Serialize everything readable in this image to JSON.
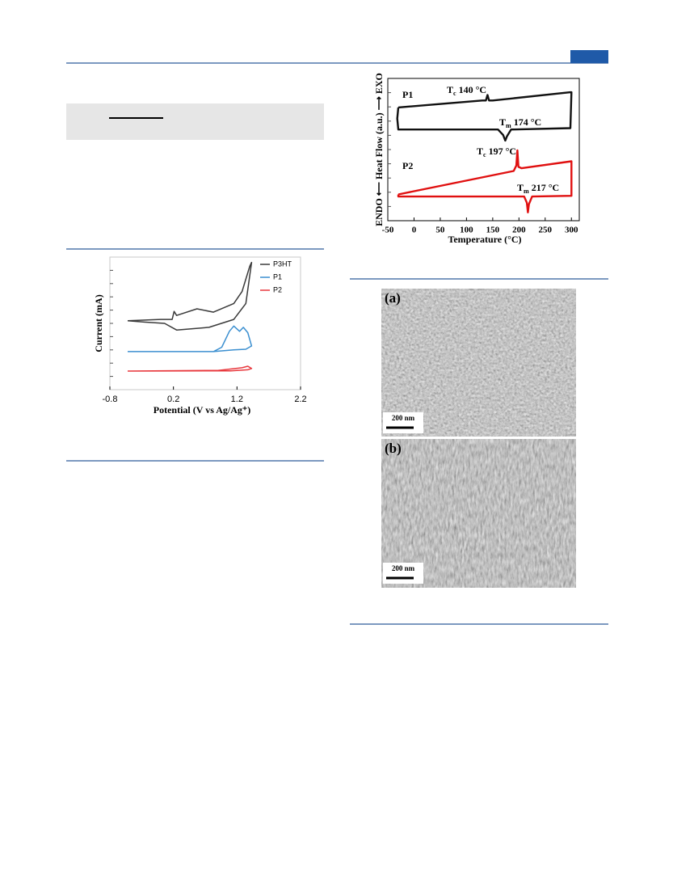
{
  "chart_data": [
    {
      "type": "line",
      "xlabel": "Potential (V vs Ag/Ag⁺)",
      "ylabel": "Current (mA)",
      "xlim": [
        -0.8,
        2.2
      ],
      "xticks": [
        -0.8,
        0.2,
        1.2,
        2.2
      ],
      "ylim": [
        0,
        10
      ],
      "legend": "top-right",
      "series": [
        {
          "name": "P3HT",
          "color": "#3a3a3a",
          "x": [
            -0.52,
            0.0,
            0.18,
            0.21,
            0.25,
            0.57,
            0.83,
            1.15,
            1.28,
            1.4,
            1.43,
            1.34,
            1.15,
            0.76,
            0.25,
            0.06,
            -0.26,
            -0.52
          ],
          "values": [
            5.2,
            5.3,
            5.3,
            5.9,
            5.6,
            6.1,
            5.85,
            6.5,
            7.4,
            9.3,
            9.6,
            6.5,
            5.3,
            4.7,
            4.5,
            5.0,
            5.1,
            5.2
          ]
        },
        {
          "name": "P1",
          "color": "#3b8fd0",
          "x": [
            -0.52,
            0.83,
            0.96,
            1.08,
            1.15,
            1.24,
            1.3,
            1.37,
            1.43,
            1.34,
            1.15,
            0.83,
            -0.52
          ],
          "values": [
            2.87,
            2.87,
            3.2,
            4.4,
            4.8,
            4.4,
            4.7,
            4.3,
            3.3,
            3.05,
            3.0,
            2.87,
            2.87
          ]
        },
        {
          "name": "P2",
          "color": "#e8383d",
          "x": [
            -0.52,
            0.9,
            1.28,
            1.37,
            1.43,
            1.37,
            1.1,
            -0.52
          ],
          "values": [
            1.4,
            1.45,
            1.65,
            1.77,
            1.6,
            1.5,
            1.42,
            1.4
          ]
        }
      ]
    },
    {
      "type": "line",
      "xlabel": "Temperature (°C)",
      "ylabel": "ENDO ⟵ Heat Flow (a.u.) ⟶ EXO",
      "xlim": [
        -50,
        315
      ],
      "xticks": [
        -50,
        0,
        50,
        100,
        150,
        200,
        250,
        300
      ],
      "ylim": [
        0,
        10.3
      ],
      "annotations": [
        {
          "symbol": "T",
          "sub": "c",
          "text": " 140 °C"
        },
        {
          "symbol": "T",
          "sub": "m",
          "text": " 174 °C"
        },
        {
          "symbol": "T",
          "sub": "c",
          "text": " 197 °C"
        },
        {
          "symbol": "T",
          "sub": "m",
          "text": " 217 °C"
        }
      ],
      "series": [
        {
          "name": "P1",
          "color": "#111111",
          "x": [
            -30,
            130,
            137,
            140,
            143,
            150,
            298,
            300,
            298,
            185,
            177,
            174,
            170,
            160,
            -30,
            -32,
            -30
          ],
          "values": [
            8.2,
            8.7,
            8.7,
            9.1,
            8.7,
            8.7,
            9.3,
            9.3,
            6.7,
            6.6,
            6.1,
            5.8,
            6.2,
            6.6,
            6.6,
            7.4,
            8.2
          ]
        },
        {
          "name": "P2",
          "color": "#e01010",
          "x": [
            -30,
            190,
            195,
            197,
            199,
            205,
            300,
            300,
            225,
            219,
            217,
            215,
            210,
            -30,
            -30
          ],
          "values": [
            1.9,
            3.6,
            4.0,
            5.1,
            3.9,
            3.8,
            4.3,
            1.8,
            1.75,
            1.2,
            0.6,
            1.3,
            1.75,
            1.75,
            1.9
          ]
        }
      ]
    }
  ],
  "images": [
    {
      "label": "(a)",
      "scale": "200 nm"
    },
    {
      "label": "(b)",
      "scale": "200 nm"
    }
  ]
}
